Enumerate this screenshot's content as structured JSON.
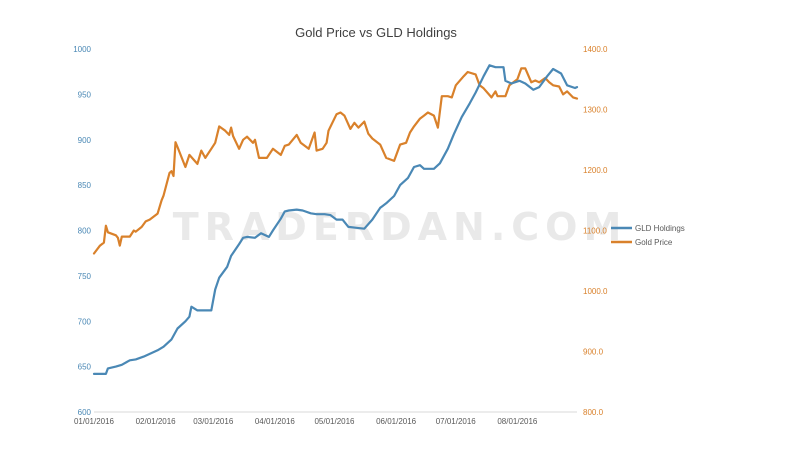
{
  "chart_data": {
    "type": "line",
    "title": "Gold Price vs GLD Holdings",
    "watermark": "TRADERDAN.COM",
    "x_tick_labels": [
      "01/01/2016",
      "02/01/2016",
      "03/01/2016",
      "04/01/2016",
      "05/01/2016",
      "06/01/2016",
      "07/01/2016",
      "08/01/2016"
    ],
    "x_range": [
      "2016-01-01",
      "2016-08-31"
    ],
    "y_left": {
      "ylim": [
        600,
        1000
      ],
      "ticks": [
        "600",
        "650",
        "700",
        "750",
        "800",
        "850",
        "900",
        "950",
        "1000"
      ],
      "color": "#4a88b5"
    },
    "y_right": {
      "ylim": [
        800,
        1400
      ],
      "ticks": [
        "800.0",
        "900.0",
        "1000.0",
        "1100.0",
        "1200.0",
        "1300.0",
        "1400.0"
      ],
      "color": "#d9812b"
    },
    "grid": false,
    "legend_position": "right",
    "series": [
      {
        "name": "GLD Holdings",
        "axis": "left",
        "color": "#4a88b5",
        "points": [
          [
            "2016-01-01",
            642
          ],
          [
            "2016-01-05",
            642
          ],
          [
            "2016-01-07",
            642
          ],
          [
            "2016-01-08",
            648
          ],
          [
            "2016-01-12",
            650
          ],
          [
            "2016-01-15",
            652
          ],
          [
            "2016-01-19",
            657
          ],
          [
            "2016-01-22",
            658
          ],
          [
            "2016-01-26",
            661
          ],
          [
            "2016-01-29",
            664
          ],
          [
            "2016-02-02",
            668
          ],
          [
            "2016-02-05",
            672
          ],
          [
            "2016-02-09",
            680
          ],
          [
            "2016-02-12",
            692
          ],
          [
            "2016-02-16",
            700
          ],
          [
            "2016-02-18",
            705
          ],
          [
            "2016-02-19",
            716
          ],
          [
            "2016-02-22",
            712
          ],
          [
            "2016-02-25",
            712
          ],
          [
            "2016-02-29",
            712
          ],
          [
            "2016-03-02",
            735
          ],
          [
            "2016-03-04",
            748
          ],
          [
            "2016-03-08",
            760
          ],
          [
            "2016-03-10",
            772
          ],
          [
            "2016-03-14",
            785
          ],
          [
            "2016-03-16",
            792
          ],
          [
            "2016-03-18",
            793
          ],
          [
            "2016-03-22",
            792
          ],
          [
            "2016-03-25",
            797
          ],
          [
            "2016-03-29",
            793
          ],
          [
            "2016-03-31",
            800
          ],
          [
            "2016-04-04",
            813
          ],
          [
            "2016-04-06",
            821
          ],
          [
            "2016-04-08",
            822
          ],
          [
            "2016-04-12",
            823
          ],
          [
            "2016-04-15",
            822
          ],
          [
            "2016-04-19",
            819
          ],
          [
            "2016-04-22",
            818
          ],
          [
            "2016-04-26",
            818
          ],
          [
            "2016-04-29",
            817
          ],
          [
            "2016-05-02",
            812
          ],
          [
            "2016-05-05",
            812
          ],
          [
            "2016-05-08",
            804
          ],
          [
            "2016-05-12",
            803
          ],
          [
            "2016-05-16",
            802
          ],
          [
            "2016-05-20",
            812
          ],
          [
            "2016-05-24",
            825
          ],
          [
            "2016-05-27",
            830
          ],
          [
            "2016-05-31",
            838
          ],
          [
            "2016-06-03",
            850
          ],
          [
            "2016-06-07",
            858
          ],
          [
            "2016-06-10",
            870
          ],
          [
            "2016-06-13",
            872
          ],
          [
            "2016-06-15",
            868
          ],
          [
            "2016-06-20",
            868
          ],
          [
            "2016-06-23",
            874
          ],
          [
            "2016-06-27",
            890
          ],
          [
            "2016-06-30",
            906
          ],
          [
            "2016-07-04",
            925
          ],
          [
            "2016-07-08",
            940
          ],
          [
            "2016-07-11",
            952
          ],
          [
            "2016-07-15",
            970
          ],
          [
            "2016-07-18",
            982
          ],
          [
            "2016-07-21",
            980
          ],
          [
            "2016-07-25",
            980
          ],
          [
            "2016-07-26",
            965
          ],
          [
            "2016-07-29",
            962
          ],
          [
            "2016-08-02",
            965
          ],
          [
            "2016-08-05",
            962
          ],
          [
            "2016-08-09",
            955
          ],
          [
            "2016-08-12",
            958
          ],
          [
            "2016-08-16",
            970
          ],
          [
            "2016-08-19",
            978
          ],
          [
            "2016-08-23",
            973
          ],
          [
            "2016-08-26",
            960
          ],
          [
            "2016-08-30",
            957
          ],
          [
            "2016-08-31",
            958
          ]
        ]
      },
      {
        "name": "Gold Price",
        "axis": "right",
        "color": "#d9812b",
        "points": [
          [
            "2016-01-01",
            1062
          ],
          [
            "2016-01-04",
            1075
          ],
          [
            "2016-01-06",
            1080
          ],
          [
            "2016-01-07",
            1108
          ],
          [
            "2016-01-08",
            1097
          ],
          [
            "2016-01-12",
            1092
          ],
          [
            "2016-01-13",
            1088
          ],
          [
            "2016-01-14",
            1075
          ],
          [
            "2016-01-15",
            1090
          ],
          [
            "2016-01-19",
            1090
          ],
          [
            "2016-01-21",
            1100
          ],
          [
            "2016-01-22",
            1098
          ],
          [
            "2016-01-25",
            1106
          ],
          [
            "2016-01-27",
            1115
          ],
          [
            "2016-01-29",
            1118
          ],
          [
            "2016-02-02",
            1128
          ],
          [
            "2016-02-04",
            1150
          ],
          [
            "2016-02-05",
            1158
          ],
          [
            "2016-02-08",
            1195
          ],
          [
            "2016-02-09",
            1198
          ],
          [
            "2016-02-10",
            1190
          ],
          [
            "2016-02-11",
            1246
          ],
          [
            "2016-02-12",
            1238
          ],
          [
            "2016-02-16",
            1205
          ],
          [
            "2016-02-18",
            1225
          ],
          [
            "2016-02-22",
            1210
          ],
          [
            "2016-02-24",
            1232
          ],
          [
            "2016-02-26",
            1220
          ],
          [
            "2016-02-29",
            1235
          ],
          [
            "2016-03-02",
            1245
          ],
          [
            "2016-03-04",
            1272
          ],
          [
            "2016-03-07",
            1265
          ],
          [
            "2016-03-09",
            1258
          ],
          [
            "2016-03-10",
            1270
          ],
          [
            "2016-03-11",
            1256
          ],
          [
            "2016-03-14",
            1235
          ],
          [
            "2016-03-16",
            1250
          ],
          [
            "2016-03-18",
            1255
          ],
          [
            "2016-03-21",
            1245
          ],
          [
            "2016-03-22",
            1250
          ],
          [
            "2016-03-24",
            1220
          ],
          [
            "2016-03-28",
            1220
          ],
          [
            "2016-03-31",
            1235
          ],
          [
            "2016-04-04",
            1225
          ],
          [
            "2016-04-06",
            1240
          ],
          [
            "2016-04-08",
            1242
          ],
          [
            "2016-04-12",
            1258
          ],
          [
            "2016-04-14",
            1245
          ],
          [
            "2016-04-18",
            1235
          ],
          [
            "2016-04-21",
            1262
          ],
          [
            "2016-04-22",
            1232
          ],
          [
            "2016-04-25",
            1235
          ],
          [
            "2016-04-27",
            1245
          ],
          [
            "2016-04-28",
            1265
          ],
          [
            "2016-05-02",
            1292
          ],
          [
            "2016-05-04",
            1295
          ],
          [
            "2016-05-06",
            1290
          ],
          [
            "2016-05-09",
            1268
          ],
          [
            "2016-05-11",
            1278
          ],
          [
            "2016-05-13",
            1270
          ],
          [
            "2016-05-16",
            1280
          ],
          [
            "2016-05-18",
            1260
          ],
          [
            "2016-05-20",
            1252
          ],
          [
            "2016-05-24",
            1242
          ],
          [
            "2016-05-27",
            1220
          ],
          [
            "2016-05-31",
            1215
          ],
          [
            "2016-06-03",
            1242
          ],
          [
            "2016-06-06",
            1245
          ],
          [
            "2016-06-08",
            1262
          ],
          [
            "2016-06-10",
            1272
          ],
          [
            "2016-06-13",
            1285
          ],
          [
            "2016-06-15",
            1290
          ],
          [
            "2016-06-17",
            1295
          ],
          [
            "2016-06-20",
            1290
          ],
          [
            "2016-06-22",
            1270
          ],
          [
            "2016-06-24",
            1322
          ],
          [
            "2016-06-27",
            1322
          ],
          [
            "2016-06-29",
            1320
          ],
          [
            "2016-07-01",
            1340
          ],
          [
            "2016-07-05",
            1355
          ],
          [
            "2016-07-07",
            1362
          ],
          [
            "2016-07-11",
            1358
          ],
          [
            "2016-07-13",
            1340
          ],
          [
            "2016-07-15",
            1335
          ],
          [
            "2016-07-19",
            1320
          ],
          [
            "2016-07-21",
            1330
          ],
          [
            "2016-07-22",
            1322
          ],
          [
            "2016-07-26",
            1322
          ],
          [
            "2016-07-28",
            1340
          ],
          [
            "2016-08-01",
            1350
          ],
          [
            "2016-08-03",
            1368
          ],
          [
            "2016-08-05",
            1368
          ],
          [
            "2016-08-08",
            1345
          ],
          [
            "2016-08-10",
            1348
          ],
          [
            "2016-08-12",
            1345
          ],
          [
            "2016-08-15",
            1352
          ],
          [
            "2016-08-17",
            1345
          ],
          [
            "2016-08-19",
            1340
          ],
          [
            "2016-08-22",
            1338
          ],
          [
            "2016-08-24",
            1325
          ],
          [
            "2016-08-26",
            1330
          ],
          [
            "2016-08-29",
            1320
          ],
          [
            "2016-08-31",
            1318
          ]
        ]
      }
    ]
  }
}
